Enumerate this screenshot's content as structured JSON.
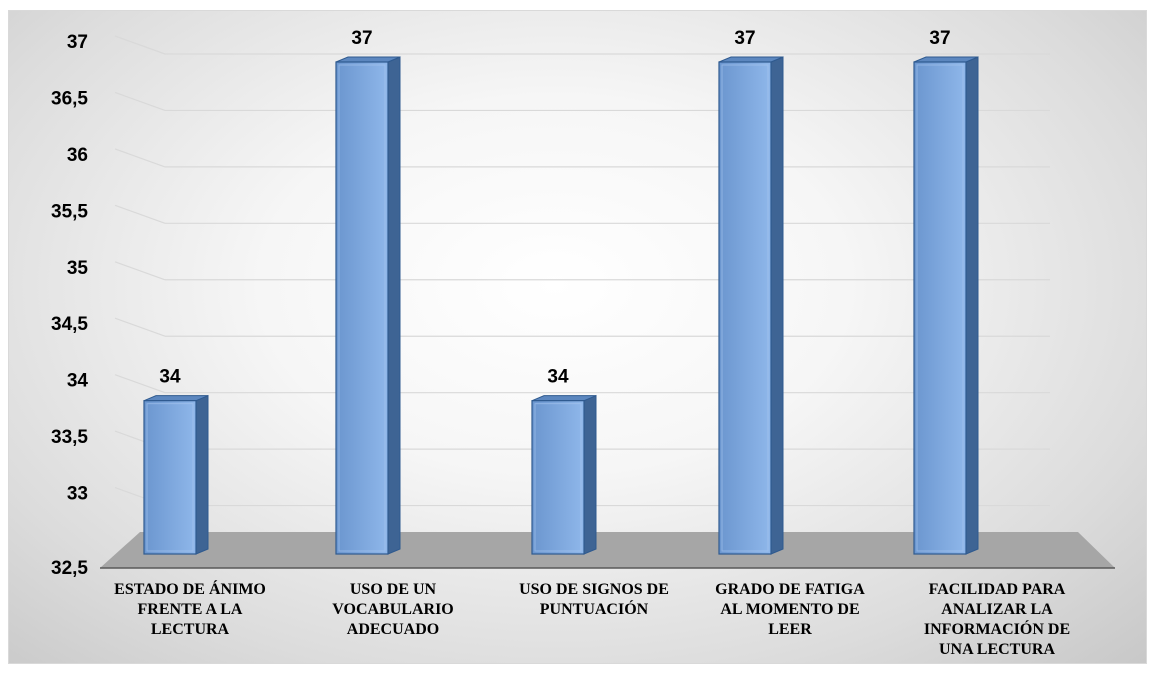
{
  "chart_data": {
    "type": "bar",
    "style": "3d-column",
    "categories": [
      "ESTADO DE ÁNIMO FRENTE A LA LECTURA",
      "USO DE UN VOCABULARIO ADECUADO",
      "USO DE SIGNOS DE PUNTUACIÓN",
      "GRADO DE FATIGA AL MOMENTO DE LEER",
      "FACILIDAD PARA ANALIZAR LA INFORMACIÓN DE UNA LECTURA"
    ],
    "category_lines": [
      [
        "ESTADO DE ÁNIMO",
        "FRENTE A LA",
        "LECTURA"
      ],
      [
        "USO DE UN",
        "VOCABULARIO",
        "ADECUADO"
      ],
      [
        "USO DE SIGNOS DE",
        "PUNTUACIÓN"
      ],
      [
        "GRADO DE FATIGA",
        "AL MOMENTO DE",
        "LEER"
      ],
      [
        "FACILIDAD PARA",
        "ANALIZAR LA",
        "INFORMACIÓN DE",
        "UNA LECTURA"
      ]
    ],
    "values": [
      34,
      37,
      34,
      37,
      37
    ],
    "data_labels": [
      "34",
      "37",
      "34",
      "37",
      "37"
    ],
    "ylim": [
      32.5,
      37
    ],
    "yticks": [
      "32,5",
      "33",
      "33,5",
      "34",
      "34,5",
      "35",
      "35,5",
      "36",
      "36,5",
      "37"
    ],
    "title": "",
    "xlabel": "",
    "ylabel": "",
    "grid": true,
    "legend": "none",
    "colors": {
      "bar_front": "#6b96cf",
      "bar_front_light": "#8fb7ea",
      "bar_side": "#3e6494",
      "bar_top": "#5c87bf",
      "bar_edge": "#2f5a8f",
      "floor": "#a6a6a6",
      "gridline": "#d9d9d9"
    }
  }
}
